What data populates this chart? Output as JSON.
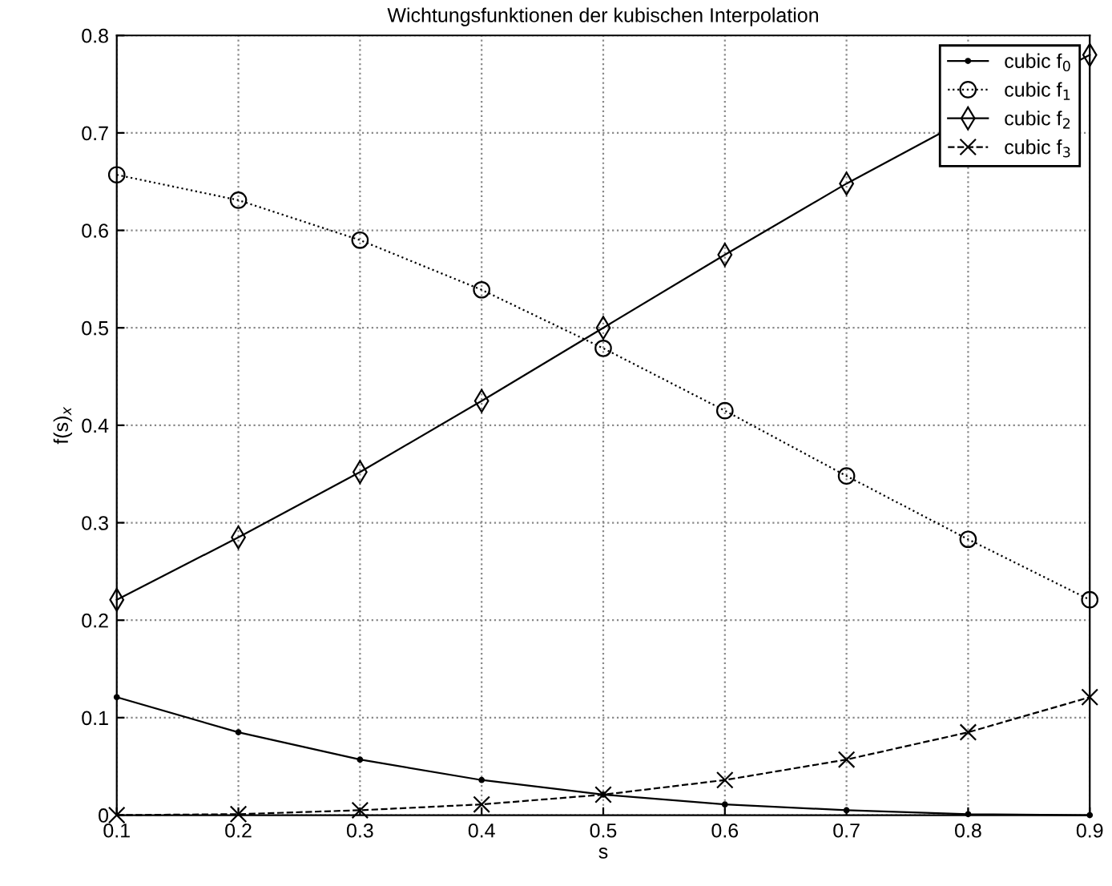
{
  "chart_data": {
    "type": "line",
    "title": "Wichtungsfunktionen der kubischen Interpolation",
    "xlabel": "s",
    "ylabel": "f(s)$_{x}$",
    "x": [
      0.1,
      0.2,
      0.3,
      0.4,
      0.5,
      0.6,
      0.7,
      0.8,
      0.9
    ],
    "series": [
      {
        "name": "cubic f$_{0}$",
        "color": "#000000",
        "marker": "point",
        "line_style": "solid",
        "values": [
          0.121,
          0.085,
          0.057,
          0.036,
          0.021,
          0.011,
          0.005,
          0.001,
          0.0
        ]
      },
      {
        "name": "cubic f$_{1}$",
        "color": "#000000",
        "marker": "circle",
        "line_style": "none",
        "values": [
          0.657,
          0.631,
          0.59,
          0.539,
          0.479,
          0.415,
          0.348,
          0.283,
          0.221
        ]
      },
      {
        "name": "cubic f$_{2}$",
        "color": "#000000",
        "marker": "diamond",
        "line_style": "solid",
        "values": [
          0.221,
          0.285,
          0.352,
          0.425,
          0.5,
          0.575,
          0.648,
          0.715,
          0.78
        ]
      },
      {
        "name": "cubic f$_{3}$",
        "color": "#000000",
        "marker": "cross",
        "line_style": "dashed",
        "values": [
          0.0,
          0.001,
          0.005,
          0.011,
          0.021,
          0.036,
          0.057,
          0.085,
          0.121
        ]
      }
    ],
    "xlim": [
      0.1,
      0.9
    ],
    "xticks": [
      0.1,
      0.2,
      0.3,
      0.4,
      0.5,
      0.6,
      0.7,
      0.8,
      0.9
    ],
    "ylim": [
      0,
      0.8
    ],
    "yticks": [
      0,
      0.1,
      0.2,
      0.3,
      0.4,
      0.5,
      0.6,
      0.7,
      0.8
    ],
    "grid": true,
    "legend": "top right"
  }
}
